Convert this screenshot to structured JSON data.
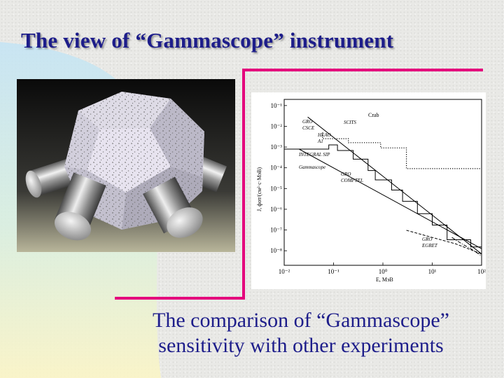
{
  "slide": {
    "title": "The view of “Gammascope” instrument",
    "caption_line1": "The comparison of “Gammascope”",
    "caption_line2": "sensitivity with other experiments",
    "accent_color": "#e4007c",
    "title_color": "#1d1d8a"
  },
  "chart_data": {
    "type": "line",
    "xlabel": "E, ΜэВ",
    "ylabel": "J, фот/(см²·с·МэВ)",
    "x_scale": "log",
    "y_scale": "log",
    "xlim": [
      0.01,
      100
    ],
    "ylim": [
      1e-08,
      0.1
    ],
    "x_tick_labels": [
      "10⁻²",
      "10⁻¹",
      "10⁰",
      "10¹",
      "10²"
    ],
    "y_tick_labels": [
      "10⁻¹",
      "10⁻²",
      "10⁻³",
      "10⁻⁴",
      "10⁻⁵",
      "10⁻⁶",
      "10⁻⁷",
      "10⁻⁸"
    ],
    "series": [
      {
        "name": "Crab",
        "style": "solid",
        "x": [
          0.03,
          100
        ],
        "y": [
          0.018,
          3e-08
        ]
      },
      {
        "name": "Gammascope",
        "style": "solid",
        "x": [
          0.02,
          100
        ],
        "y": [
          0.0008,
          5e-08
        ]
      },
      {
        "name": "GRO CSCE",
        "style": "dotted",
        "x": [
          0.06,
          0.06,
          0.2,
          0.2,
          0.9,
          0.9,
          3,
          3,
          100
        ],
        "y": [
          0.004,
          0.0022,
          0.0022,
          0.0015,
          0.0015,
          0.0009,
          0.0009,
          0.00012,
          0.00012
        ]
      },
      {
        "name": "INTEGRAL SIP",
        "style": "solid-step",
        "x": [
          0.01,
          0.08,
          0.08,
          0.12,
          0.12,
          0.25,
          0.25,
          0.5,
          0.5,
          0.7,
          0.7,
          1.5,
          1.5,
          2.5,
          2.5,
          5,
          5,
          10,
          10,
          20,
          20,
          60,
          60,
          100
        ],
        "y": [
          0.0008,
          0.0008,
          0.0012,
          0.0012,
          0.0007,
          0.0007,
          0.0003,
          0.0003,
          0.0001,
          0.0001,
          4e-05,
          4e-05,
          1.5e-05,
          1.5e-05,
          5e-06,
          5e-06,
          1.5e-06,
          1.5e-06,
          5e-07,
          5e-07,
          1.2e-07,
          1.2e-07,
          6e-08,
          6e-08
        ]
      },
      {
        "name": "GRO COMPTEL",
        "style": "dashed",
        "x": [
          3,
          10,
          30,
          100
        ],
        "y": [
          3e-07,
          1.5e-07,
          8e-08,
          3e-08
        ]
      },
      {
        "name": "GRO EGRET",
        "style": "dash-dot",
        "x": [
          25,
          40,
          60,
          100
        ],
        "y": [
          1.5e-07,
          8e-08,
          5e-08,
          2.5e-08
        ]
      }
    ],
    "annotations": [
      "Crab",
      "SCITS",
      "GRO",
      "CSCE",
      "HEAO",
      "A1",
      "INTEGRAL SIP",
      "Gammascope",
      "GRO",
      "COMPTEL",
      "GRO",
      "EGRET"
    ]
  }
}
